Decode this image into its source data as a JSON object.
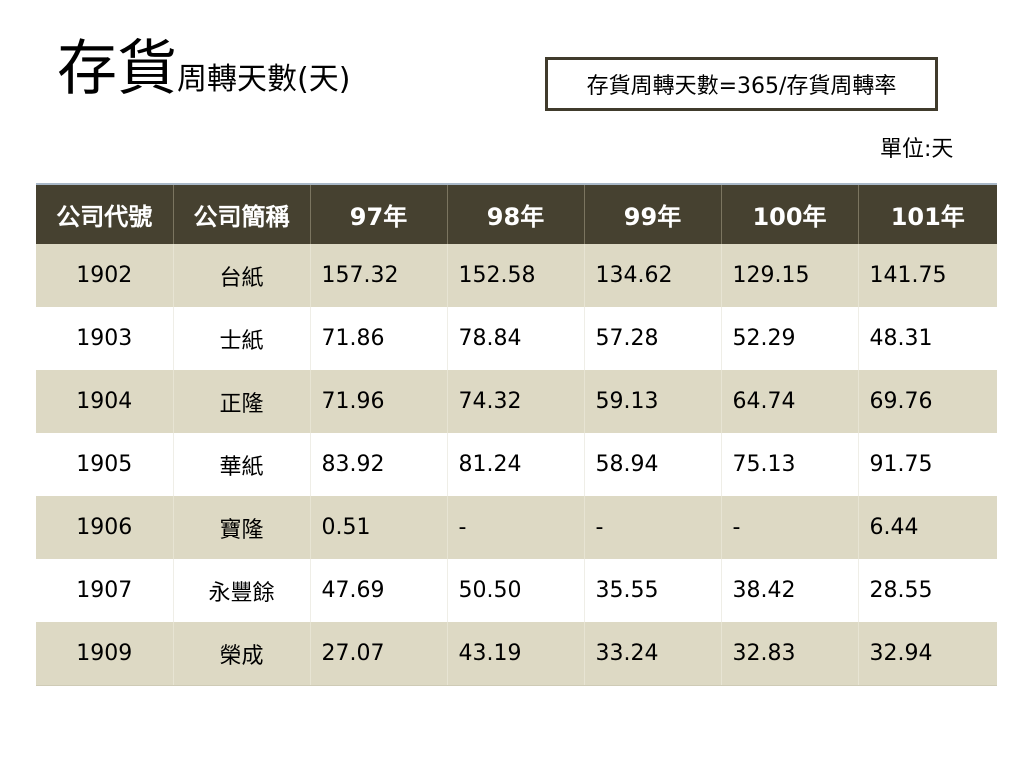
{
  "title": {
    "big": "存貨",
    "small": "周轉天數(天)"
  },
  "formula": "存貨周轉天數=365/存貨周轉率",
  "unit": "單位:天",
  "table": {
    "headers": [
      "公司代號",
      "公司簡稱",
      "97年",
      "98年",
      "99年",
      "100年",
      "101年"
    ],
    "rows": [
      [
        "1902",
        "台紙",
        "157.32",
        "152.58",
        "134.62",
        "129.15",
        "141.75"
      ],
      [
        "1903",
        "士紙",
        "71.86",
        "78.84",
        "57.28",
        "52.29",
        "48.31"
      ],
      [
        "1904",
        "正隆",
        "71.96",
        "74.32",
        "59.13",
        "64.74",
        "69.76"
      ],
      [
        "1905",
        "華紙",
        "83.92",
        "81.24",
        "58.94",
        "75.13",
        "91.75"
      ],
      [
        "1906",
        "寶隆",
        "0.51",
        "-",
        "-",
        "-",
        "6.44"
      ],
      [
        "1907",
        "永豐餘",
        "47.69",
        "50.50",
        "35.55",
        "38.42",
        "28.55"
      ],
      [
        "1909",
        "榮成",
        "27.07",
        "43.19",
        "33.24",
        "32.83",
        "32.94"
      ]
    ]
  }
}
